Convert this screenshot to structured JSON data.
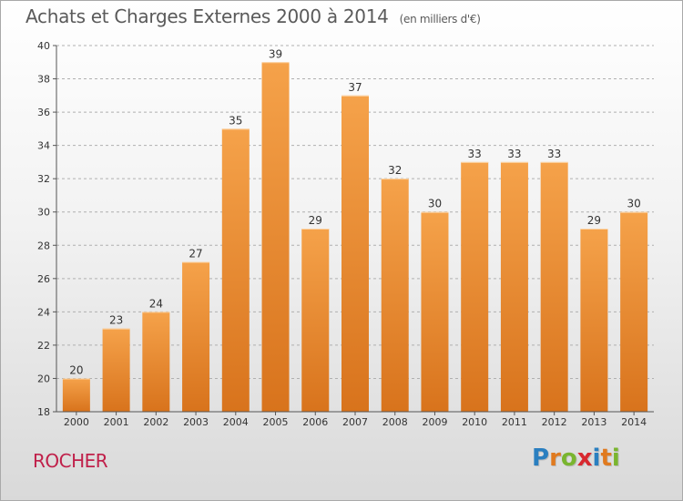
{
  "header": {
    "title": "Achats et Charges Externes 2000 à 2014",
    "subtitle": "(en milliers d'€)"
  },
  "place_name": "ROCHER",
  "logo": {
    "text": "Proxiti",
    "letters": [
      {
        "ch": "P",
        "color": "#2a7fc0"
      },
      {
        "ch": "r",
        "color": "#e07a1f"
      },
      {
        "ch": "o",
        "color": "#7ab52f"
      },
      {
        "ch": "x",
        "color": "#d8282f"
      },
      {
        "ch": "i",
        "color": "#2a7fc0"
      },
      {
        "ch": "t",
        "color": "#e07a1f"
      },
      {
        "ch": "i",
        "color": "#7ab52f"
      }
    ]
  },
  "colors": {
    "bar_top": "#f5a24a",
    "bar_bottom": "#d8731c",
    "axis": "#555555",
    "grid": "#b0b0b0",
    "place": "#c0204a"
  },
  "chart_data": {
    "type": "bar",
    "categories": [
      "2000",
      "2001",
      "2002",
      "2003",
      "2004",
      "2005",
      "2006",
      "2007",
      "2008",
      "2009",
      "2010",
      "2011",
      "2012",
      "2013",
      "2014"
    ],
    "values": [
      20,
      23,
      24,
      27,
      35,
      39,
      29,
      37,
      32,
      30,
      33,
      33,
      33,
      29,
      30
    ],
    "ylim": [
      18,
      40
    ],
    "yticks": [
      18,
      20,
      22,
      24,
      26,
      28,
      30,
      32,
      34,
      36,
      38,
      40
    ],
    "grid": "horizontal dashed",
    "data_labels": true
  }
}
